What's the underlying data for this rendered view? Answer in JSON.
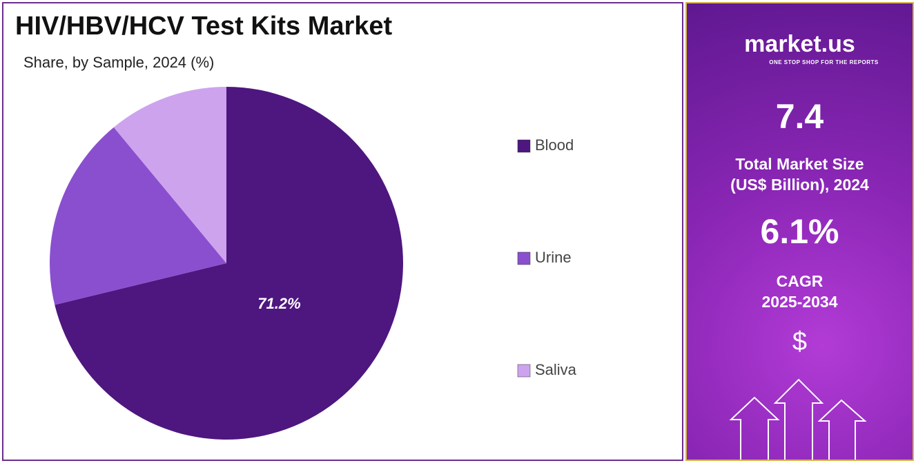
{
  "chart_data": {
    "type": "pie",
    "title": "HIV/HBV/HCV Test Kits Market",
    "subtitle": "Share, by Sample, 2024 (%)",
    "categories": [
      "Blood",
      "Urine",
      "Saliva"
    ],
    "values": [
      71.2,
      17.8,
      11.0
    ],
    "value_labels": [
      "71.2%",
      null,
      null
    ],
    "colors": [
      "#4e167f",
      "#8a4fcf",
      "#cda3ee"
    ],
    "legend": "right"
  },
  "sidebar": {
    "brand": "market.us",
    "tagline": "ONE STOP SHOP FOR THE REPORTS",
    "market_size": "7.4",
    "market_size_label": [
      "Total Market Size",
      "(US$ Billion), 2024"
    ],
    "cagr": "6.1%",
    "cagr_label": [
      "CAGR",
      "2025-2034"
    ],
    "currency": "$"
  }
}
